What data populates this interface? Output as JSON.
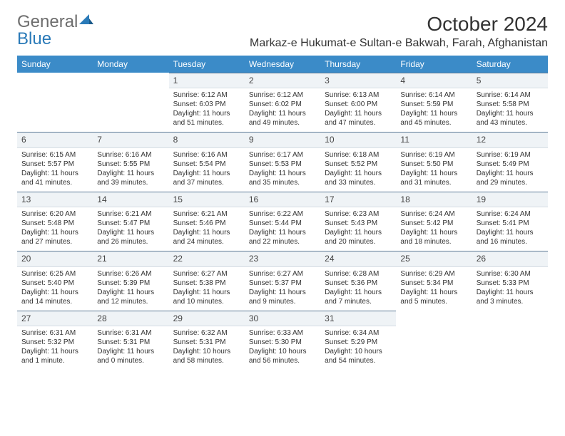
{
  "logo": {
    "prefix": "General",
    "suffix": "Blue"
  },
  "title": "October 2024",
  "location": "Markaz-e Hukumat-e Sultan-e Bakwah, Farah, Afghanistan",
  "colors": {
    "header_bg": "#3b8bc8",
    "daynum_bg": "#eff3f6",
    "daynum_border_top": "#5d7a96",
    "text": "#333333"
  },
  "day_names": [
    "Sunday",
    "Monday",
    "Tuesday",
    "Wednesday",
    "Thursday",
    "Friday",
    "Saturday"
  ],
  "leading_blanks": 2,
  "days": [
    {
      "n": "1",
      "sunrise": "6:12 AM",
      "sunset": "6:03 PM",
      "daylight": "11 hours and 51 minutes."
    },
    {
      "n": "2",
      "sunrise": "6:12 AM",
      "sunset": "6:02 PM",
      "daylight": "11 hours and 49 minutes."
    },
    {
      "n": "3",
      "sunrise": "6:13 AM",
      "sunset": "6:00 PM",
      "daylight": "11 hours and 47 minutes."
    },
    {
      "n": "4",
      "sunrise": "6:14 AM",
      "sunset": "5:59 PM",
      "daylight": "11 hours and 45 minutes."
    },
    {
      "n": "5",
      "sunrise": "6:14 AM",
      "sunset": "5:58 PM",
      "daylight": "11 hours and 43 minutes."
    },
    {
      "n": "6",
      "sunrise": "6:15 AM",
      "sunset": "5:57 PM",
      "daylight": "11 hours and 41 minutes."
    },
    {
      "n": "7",
      "sunrise": "6:16 AM",
      "sunset": "5:55 PM",
      "daylight": "11 hours and 39 minutes."
    },
    {
      "n": "8",
      "sunrise": "6:16 AM",
      "sunset": "5:54 PM",
      "daylight": "11 hours and 37 minutes."
    },
    {
      "n": "9",
      "sunrise": "6:17 AM",
      "sunset": "5:53 PM",
      "daylight": "11 hours and 35 minutes."
    },
    {
      "n": "10",
      "sunrise": "6:18 AM",
      "sunset": "5:52 PM",
      "daylight": "11 hours and 33 minutes."
    },
    {
      "n": "11",
      "sunrise": "6:19 AM",
      "sunset": "5:50 PM",
      "daylight": "11 hours and 31 minutes."
    },
    {
      "n": "12",
      "sunrise": "6:19 AM",
      "sunset": "5:49 PM",
      "daylight": "11 hours and 29 minutes."
    },
    {
      "n": "13",
      "sunrise": "6:20 AM",
      "sunset": "5:48 PM",
      "daylight": "11 hours and 27 minutes."
    },
    {
      "n": "14",
      "sunrise": "6:21 AM",
      "sunset": "5:47 PM",
      "daylight": "11 hours and 26 minutes."
    },
    {
      "n": "15",
      "sunrise": "6:21 AM",
      "sunset": "5:46 PM",
      "daylight": "11 hours and 24 minutes."
    },
    {
      "n": "16",
      "sunrise": "6:22 AM",
      "sunset": "5:44 PM",
      "daylight": "11 hours and 22 minutes."
    },
    {
      "n": "17",
      "sunrise": "6:23 AM",
      "sunset": "5:43 PM",
      "daylight": "11 hours and 20 minutes."
    },
    {
      "n": "18",
      "sunrise": "6:24 AM",
      "sunset": "5:42 PM",
      "daylight": "11 hours and 18 minutes."
    },
    {
      "n": "19",
      "sunrise": "6:24 AM",
      "sunset": "5:41 PM",
      "daylight": "11 hours and 16 minutes."
    },
    {
      "n": "20",
      "sunrise": "6:25 AM",
      "sunset": "5:40 PM",
      "daylight": "11 hours and 14 minutes."
    },
    {
      "n": "21",
      "sunrise": "6:26 AM",
      "sunset": "5:39 PM",
      "daylight": "11 hours and 12 minutes."
    },
    {
      "n": "22",
      "sunrise": "6:27 AM",
      "sunset": "5:38 PM",
      "daylight": "11 hours and 10 minutes."
    },
    {
      "n": "23",
      "sunrise": "6:27 AM",
      "sunset": "5:37 PM",
      "daylight": "11 hours and 9 minutes."
    },
    {
      "n": "24",
      "sunrise": "6:28 AM",
      "sunset": "5:36 PM",
      "daylight": "11 hours and 7 minutes."
    },
    {
      "n": "25",
      "sunrise": "6:29 AM",
      "sunset": "5:34 PM",
      "daylight": "11 hours and 5 minutes."
    },
    {
      "n": "26",
      "sunrise": "6:30 AM",
      "sunset": "5:33 PM",
      "daylight": "11 hours and 3 minutes."
    },
    {
      "n": "27",
      "sunrise": "6:31 AM",
      "sunset": "5:32 PM",
      "daylight": "11 hours and 1 minute."
    },
    {
      "n": "28",
      "sunrise": "6:31 AM",
      "sunset": "5:31 PM",
      "daylight": "11 hours and 0 minutes."
    },
    {
      "n": "29",
      "sunrise": "6:32 AM",
      "sunset": "5:31 PM",
      "daylight": "10 hours and 58 minutes."
    },
    {
      "n": "30",
      "sunrise": "6:33 AM",
      "sunset": "5:30 PM",
      "daylight": "10 hours and 56 minutes."
    },
    {
      "n": "31",
      "sunrise": "6:34 AM",
      "sunset": "5:29 PM",
      "daylight": "10 hours and 54 minutes."
    }
  ],
  "labels": {
    "sunrise_prefix": "Sunrise: ",
    "sunset_prefix": "Sunset: ",
    "daylight_prefix": "Daylight: "
  }
}
